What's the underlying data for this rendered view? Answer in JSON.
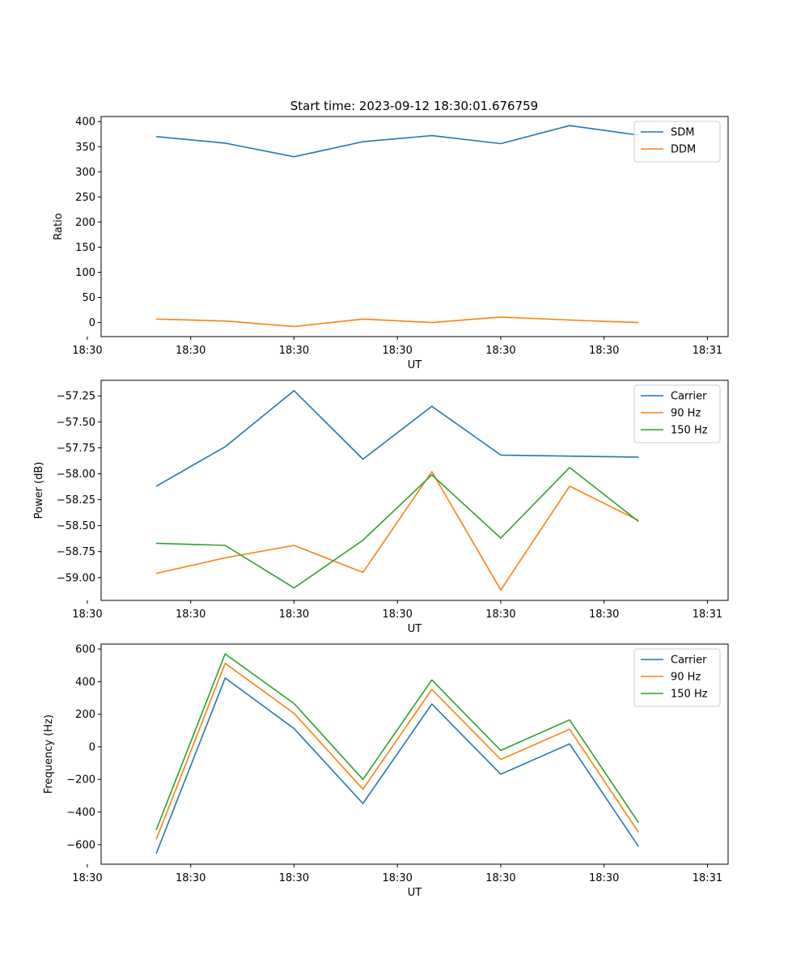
{
  "figure": {
    "title": "Start time: 2023-09-12 18:30:01.676759"
  },
  "chart_data": [
    {
      "type": "line",
      "title": "Start time: 2023-09-12 18:30:01.676759",
      "xlabel": "UT",
      "ylabel": "Ratio",
      "x": [
        1,
        2,
        3,
        4,
        5,
        6,
        7,
        8
      ],
      "xlim": [
        0.2,
        9.3
      ],
      "xticks": [
        {
          "v": 0,
          "label": "18:30"
        },
        {
          "v": 1.5,
          "label": "18:30"
        },
        {
          "v": 3,
          "label": "18:30"
        },
        {
          "v": 4.5,
          "label": "18:30"
        },
        {
          "v": 6,
          "label": "18:30"
        },
        {
          "v": 7.5,
          "label": "18:30"
        },
        {
          "v": 9,
          "label": "18:31"
        }
      ],
      "ylim": [
        -28,
        410
      ],
      "yticks": [
        {
          "v": 0,
          "label": "0"
        },
        {
          "v": 50,
          "label": "50"
        },
        {
          "v": 100,
          "label": "100"
        },
        {
          "v": 150,
          "label": "150"
        },
        {
          "v": 200,
          "label": "200"
        },
        {
          "v": 250,
          "label": "250"
        },
        {
          "v": 300,
          "label": "300"
        },
        {
          "v": 350,
          "label": "350"
        },
        {
          "v": 400,
          "label": "400"
        }
      ],
      "legend": "top-right",
      "series": [
        {
          "name": "SDM",
          "color": "#1f77b4",
          "values": [
            370,
            357,
            330,
            360,
            372,
            356,
            392,
            373
          ]
        },
        {
          "name": "DDM",
          "color": "#ff7f0e",
          "values": [
            7,
            3,
            -8,
            7,
            0,
            11,
            5,
            0
          ]
        }
      ]
    },
    {
      "type": "line",
      "title": "",
      "xlabel": "UT",
      "ylabel": "Power (dB)",
      "x": [
        1,
        2,
        3,
        4,
        5,
        6,
        7,
        8
      ],
      "xlim": [
        0.2,
        9.3
      ],
      "xticks": [
        {
          "v": 0,
          "label": "18:30"
        },
        {
          "v": 1.5,
          "label": "18:30"
        },
        {
          "v": 3,
          "label": "18:30"
        },
        {
          "v": 4.5,
          "label": "18:30"
        },
        {
          "v": 6,
          "label": "18:30"
        },
        {
          "v": 7.5,
          "label": "18:30"
        },
        {
          "v": 9,
          "label": "18:31"
        }
      ],
      "ylim": [
        -59.22,
        -57.1
      ],
      "yticks": [
        {
          "v": -59.0,
          "label": "−59.00"
        },
        {
          "v": -58.75,
          "label": "−58.75"
        },
        {
          "v": -58.5,
          "label": "−58.50"
        },
        {
          "v": -58.25,
          "label": "−58.25"
        },
        {
          "v": -58.0,
          "label": "−58.00"
        },
        {
          "v": -57.75,
          "label": "−57.75"
        },
        {
          "v": -57.5,
          "label": "−57.50"
        },
        {
          "v": -57.25,
          "label": "−57.25"
        }
      ],
      "legend": "top-right",
      "series": [
        {
          "name": "Carrier",
          "color": "#1f77b4",
          "values": [
            -58.12,
            -57.74,
            -57.2,
            -57.86,
            -57.35,
            -57.82,
            -57.83,
            -57.84
          ]
        },
        {
          "name": "90 Hz",
          "color": "#ff7f0e",
          "values": [
            -58.96,
            -58.81,
            -58.69,
            -58.95,
            -57.98,
            -59.12,
            -58.12,
            -58.45
          ]
        },
        {
          "name": "150 Hz",
          "color": "#2ca02c",
          "values": [
            -58.67,
            -58.69,
            -59.1,
            -58.64,
            -58.01,
            -58.62,
            -57.94,
            -58.46
          ]
        }
      ]
    },
    {
      "type": "line",
      "title": "",
      "xlabel": "UT",
      "ylabel": "Frequency (Hz)",
      "x": [
        1,
        2,
        3,
        4,
        5,
        6,
        7,
        8
      ],
      "xlim": [
        0.2,
        9.3
      ],
      "xticks": [
        {
          "v": 0,
          "label": "18:30"
        },
        {
          "v": 1.5,
          "label": "18:30"
        },
        {
          "v": 3,
          "label": "18:30"
        },
        {
          "v": 4.5,
          "label": "18:30"
        },
        {
          "v": 6,
          "label": "18:30"
        },
        {
          "v": 7.5,
          "label": "18:30"
        },
        {
          "v": 9,
          "label": "18:31"
        }
      ],
      "ylim": [
        -720,
        630
      ],
      "yticks": [
        {
          "v": -600,
          "label": "−600"
        },
        {
          "v": -400,
          "label": "−400"
        },
        {
          "v": -200,
          "label": "−200"
        },
        {
          "v": 0,
          "label": "0"
        },
        {
          "v": 200,
          "label": "200"
        },
        {
          "v": 400,
          "label": "400"
        },
        {
          "v": 600,
          "label": "600"
        }
      ],
      "legend": "top-right",
      "series": [
        {
          "name": "Carrier",
          "color": "#1f77b4",
          "values": [
            -655,
            422,
            112,
            -348,
            262,
            -168,
            18,
            -612
          ]
        },
        {
          "name": "90 Hz",
          "color": "#ff7f0e",
          "values": [
            -568,
            512,
            205,
            -260,
            352,
            -78,
            108,
            -525
          ]
        },
        {
          "name": "150 Hz",
          "color": "#2ca02c",
          "values": [
            -510,
            570,
            265,
            -200,
            410,
            -22,
            165,
            -465
          ]
        }
      ]
    }
  ]
}
